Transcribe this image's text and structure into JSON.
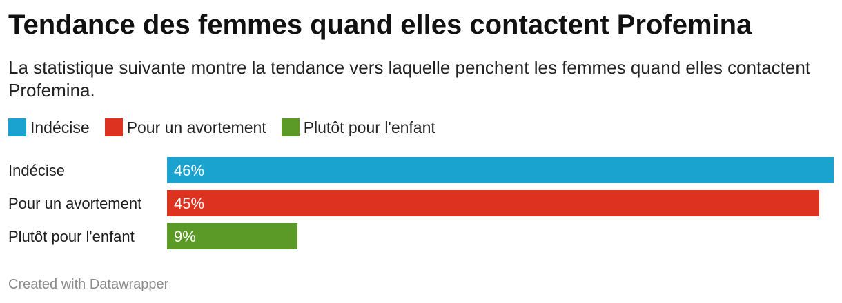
{
  "header": {
    "title": "Tendance des femmes quand elles contactent Profemina",
    "subtitle": "La statistique suivante montre la tendance vers laquelle penchent les femmes quand elles contactent Profemina."
  },
  "footer": {
    "credit": "Created with Datawrapper"
  },
  "chart_data": {
    "type": "bar",
    "orientation": "horizontal",
    "categories": [
      "Indécise",
      "Pour un avortement",
      "Plutôt pour l'enfant"
    ],
    "values": [
      46,
      45,
      9
    ],
    "value_labels": [
      "46%",
      "45%",
      "9%"
    ],
    "colors": [
      "#1ba3d0",
      "#dd3220",
      "#5c9a28"
    ],
    "legend": {
      "placement": "top-left",
      "entries": [
        "Indécise",
        "Pour un avortement",
        "Plutôt pour l'enfant"
      ]
    },
    "xlim": [
      0,
      46
    ],
    "grid": false
  }
}
